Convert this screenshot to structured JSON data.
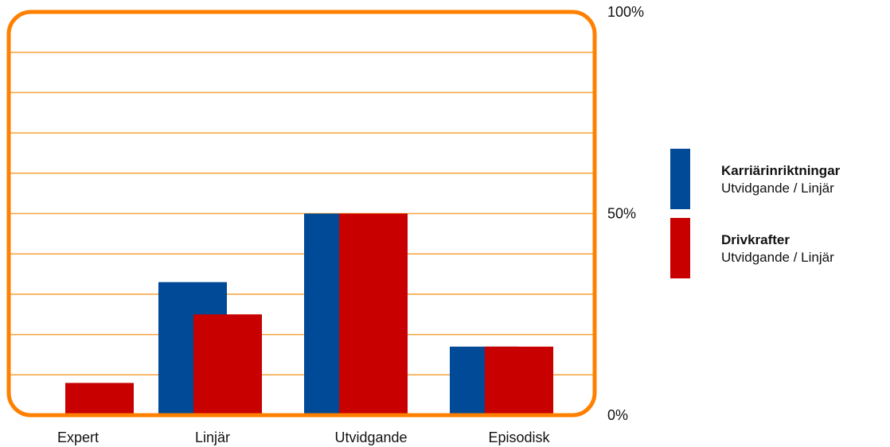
{
  "chart_data": {
    "type": "bar",
    "categories": [
      "Expert",
      "Linjär",
      "Utvidgande",
      "Episodisk"
    ],
    "series": [
      {
        "name": "Karriärinriktningar",
        "subtitle": "Utvidgande / Linjär",
        "color": "#004a97",
        "values": [
          0,
          33,
          50,
          17
        ]
      },
      {
        "name": "Drivkrafter",
        "subtitle": "Utvidgande / Linjär",
        "color": "#c80000",
        "values": [
          8,
          25,
          50,
          17
        ]
      }
    ],
    "ylim": [
      0,
      100
    ],
    "y_tick_labels": [
      {
        "value": 0,
        "label": "0%"
      },
      {
        "value": 50,
        "label": "50%"
      },
      {
        "value": 100,
        "label": "100%"
      }
    ],
    "gridlines_every": 10,
    "grid": true,
    "frame_color": "#ff8000",
    "grid_color": "#f5a23a",
    "legend": "right"
  }
}
